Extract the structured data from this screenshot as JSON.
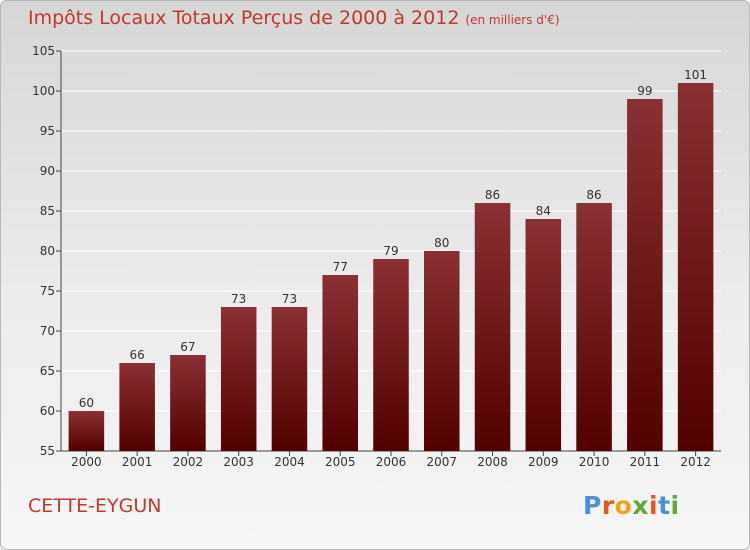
{
  "title": "Impôts Locaux Totaux Perçus de 2000 à 2012",
  "subtitle": "(en milliers d'€)",
  "town": "CETTE-EYGUN",
  "logo_text": "Proxiti",
  "colors": {
    "accent": "#c0392b",
    "bar_top": "#8b3034",
    "bar_bottom": "#520000",
    "logo": [
      "#4a90d9",
      "#e8561c",
      "#f2a21b",
      "#5cab3c",
      "#e8561c",
      "#4a90d9",
      "#5cab3c"
    ]
  },
  "chart_data": {
    "type": "bar",
    "title": "Impôts Locaux Totaux Perçus de 2000 à 2012",
    "subtitle": "(en milliers d'€)",
    "xlabel": "",
    "ylabel": "",
    "categories": [
      "2000",
      "2001",
      "2002",
      "2003",
      "2004",
      "2005",
      "2006",
      "2007",
      "2008",
      "2009",
      "2010",
      "2011",
      "2012"
    ],
    "values": [
      60,
      66,
      67,
      73,
      73,
      77,
      79,
      80,
      86,
      84,
      86,
      99,
      101
    ],
    "ylim": [
      55,
      105
    ],
    "yticks": [
      55,
      60,
      65,
      70,
      75,
      80,
      85,
      90,
      95,
      100,
      105
    ],
    "grid": true,
    "data_labels": true
  }
}
